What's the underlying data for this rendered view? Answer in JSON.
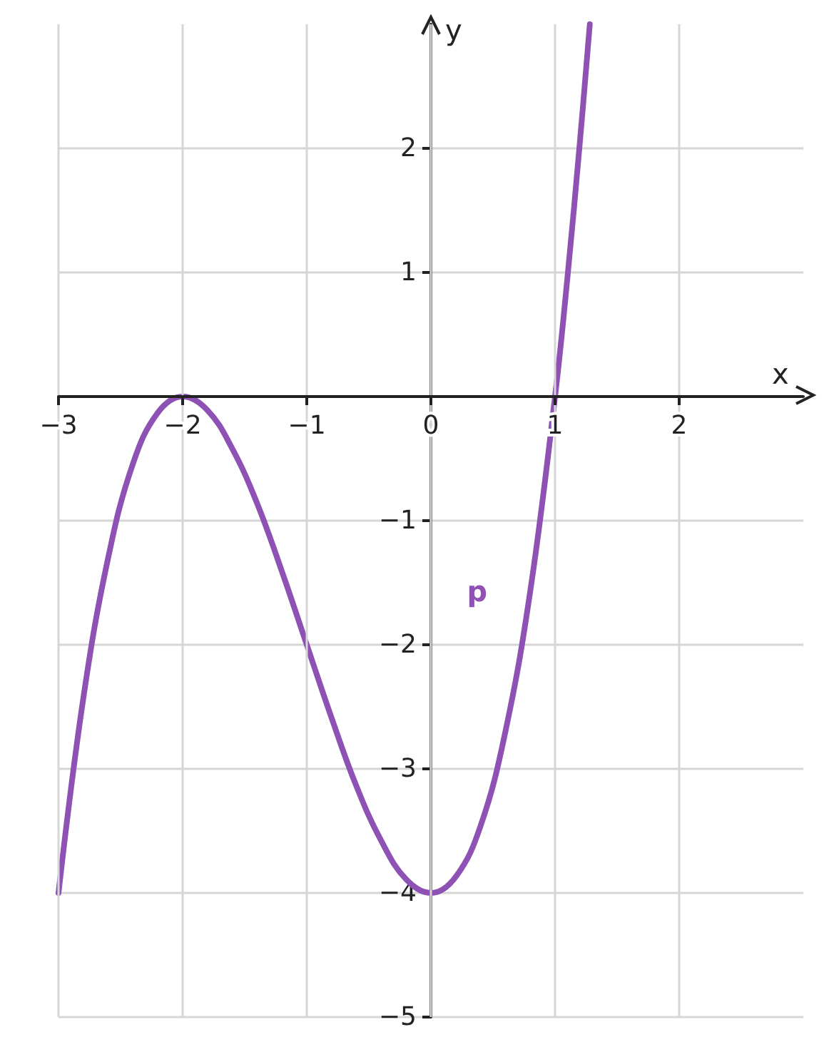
{
  "chart_data": {
    "type": "line",
    "xlabel": "x",
    "ylabel": "y",
    "xlim": [
      -3,
      3
    ],
    "ylim": [
      -5,
      3
    ],
    "xticks": [
      -3,
      -2,
      -1,
      0,
      1,
      2
    ],
    "yticks": [
      -5,
      -4,
      -3,
      -2,
      -1,
      1,
      2
    ],
    "grid": true,
    "legend": false,
    "marker": "none",
    "line_style": "solid",
    "series": [
      {
        "name": "p",
        "color": "#8e52b5",
        "x": [
          -3,
          -2.8,
          -2.6,
          -2.4,
          -2.2,
          -2,
          -1.8,
          -1.6,
          -1.4,
          -1.2,
          -1,
          -0.8,
          -0.6,
          -0.4,
          -0.2,
          0,
          0.2,
          0.4,
          0.6,
          0.8,
          1,
          1.1,
          1.2,
          1.28
        ],
        "values": [
          -4,
          -2.43,
          -1.3,
          -0.54,
          -0.13,
          0,
          -0.11,
          -0.42,
          -0.86,
          -1.41,
          -2,
          -2.59,
          -3.14,
          -3.58,
          -3.89,
          -4,
          -3.87,
          -3.46,
          -2.7,
          -1.57,
          0,
          0.96,
          2.05,
          3
        ]
      }
    ]
  }
}
